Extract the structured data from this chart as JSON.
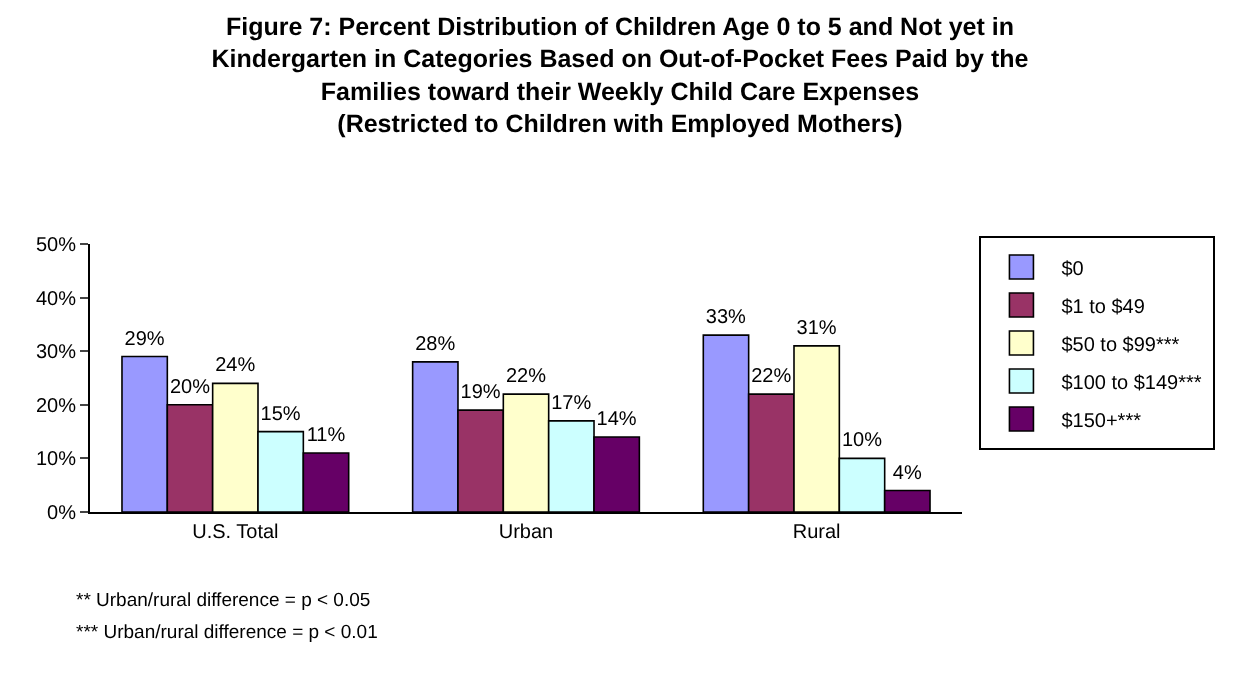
{
  "chart_data": {
    "type": "bar",
    "title": "Figure 7: Percent Distribution of Children Age 0 to 5 and Not yet in\nKindergarten in Categories Based on Out-of-Pocket Fees Paid by the\nFamilies toward their Weekly Child Care Expenses\n(Restricted to Children with Employed Mothers)",
    "categories": [
      "U.S. Total",
      "Urban",
      "Rural"
    ],
    "series": [
      {
        "name": "$0",
        "color": "#9999ff",
        "values": [
          29,
          28,
          33
        ],
        "value_labels": [
          "29%",
          "28%",
          "33%"
        ]
      },
      {
        "name": "$1 to $49",
        "color": "#993366",
        "values": [
          20,
          19,
          22
        ],
        "value_labels": [
          "20%",
          "19%",
          "22%"
        ]
      },
      {
        "name": "$50 to $99***",
        "color": "#ffffcc",
        "values": [
          24,
          22,
          31
        ],
        "value_labels": [
          "24%",
          "22%",
          "31%"
        ]
      },
      {
        "name": "$100 to $149***",
        "color": "#ccffff",
        "values": [
          15,
          17,
          10
        ],
        "value_labels": [
          "15%",
          "17%",
          "10%"
        ]
      },
      {
        "name": "$150+***",
        "color": "#660066",
        "values": [
          11,
          14,
          4
        ],
        "value_labels": [
          "11%",
          "14%",
          "4%"
        ]
      }
    ],
    "ylim": [
      0,
      50
    ],
    "yticks": [
      {
        "value": 0,
        "label": "0%"
      },
      {
        "value": 10,
        "label": "10%"
      },
      {
        "value": 20,
        "label": "20%"
      },
      {
        "value": 30,
        "label": "30%"
      },
      {
        "value": 40,
        "label": "40%"
      },
      {
        "value": 50,
        "label": "50%"
      }
    ],
    "legend": "top right",
    "grid": false,
    "annotations": [
      "** Urban/rural difference = p < 0.05",
      "*** Urban/rural difference = p < 0.01"
    ]
  }
}
